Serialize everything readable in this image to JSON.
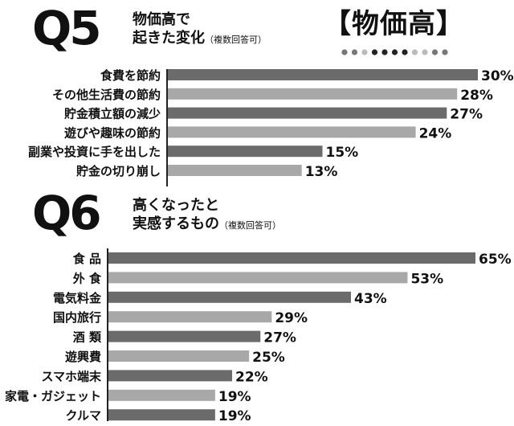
{
  "header": {
    "tag": "【物価高】",
    "dot_colors": [
      "#777777",
      "#777777",
      "#bbbbbb",
      "#222222",
      "#222222",
      "#222222",
      "#222222",
      "#bbbbbb",
      "#bbbbbb",
      "#777777",
      "#777777"
    ]
  },
  "q5": {
    "number": "Q5",
    "title_line1": "物価高で",
    "title_line2": "起きた変化",
    "note": "（複数回答可）"
  },
  "q6": {
    "number": "Q6",
    "title_line1": "高くなったと",
    "title_line2": "実感するもの",
    "note": "（複数回答可）"
  },
  "colors": {
    "dark_bar": "#6b6b6b",
    "light_bar": "#a8a8a8",
    "text": "#111111"
  },
  "chart_data": [
    {
      "type": "bar",
      "orientation": "horizontal",
      "title": "物価高で起きた変化（複数回答可）",
      "categories": [
        "食費を節約",
        "その他生活費の節約",
        "貯金積立額の減少",
        "遊びや趣味の節約",
        "副業や投資に手を出した",
        "貯金の切り崩し"
      ],
      "values": [
        30,
        28,
        27,
        24,
        15,
        13
      ],
      "labels": [
        "30%",
        "28%",
        "27%",
        "24%",
        "15%",
        "13%"
      ],
      "shades": [
        "dark",
        "light",
        "dark",
        "light",
        "dark",
        "light"
      ],
      "xlim": [
        0,
        30
      ],
      "unit": "%"
    },
    {
      "type": "bar",
      "orientation": "horizontal",
      "title": "高くなったと実感するもの（複数回答可）",
      "categories": [
        "食 品",
        "外 食",
        "電気料金",
        "国内旅行",
        "酒 類",
        "遊興費",
        "スマホ端末",
        "家電・ガジェット",
        "クルマ"
      ],
      "values": [
        65,
        53,
        43,
        29,
        27,
        25,
        22,
        19,
        19
      ],
      "labels": [
        "65%",
        "53%",
        "43%",
        "29%",
        "27%",
        "25%",
        "22%",
        "19%",
        "19%"
      ],
      "shades": [
        "dark",
        "light",
        "dark",
        "light",
        "dark",
        "light",
        "dark",
        "light",
        "dark"
      ],
      "xlim": [
        0,
        65
      ],
      "unit": "%"
    }
  ]
}
